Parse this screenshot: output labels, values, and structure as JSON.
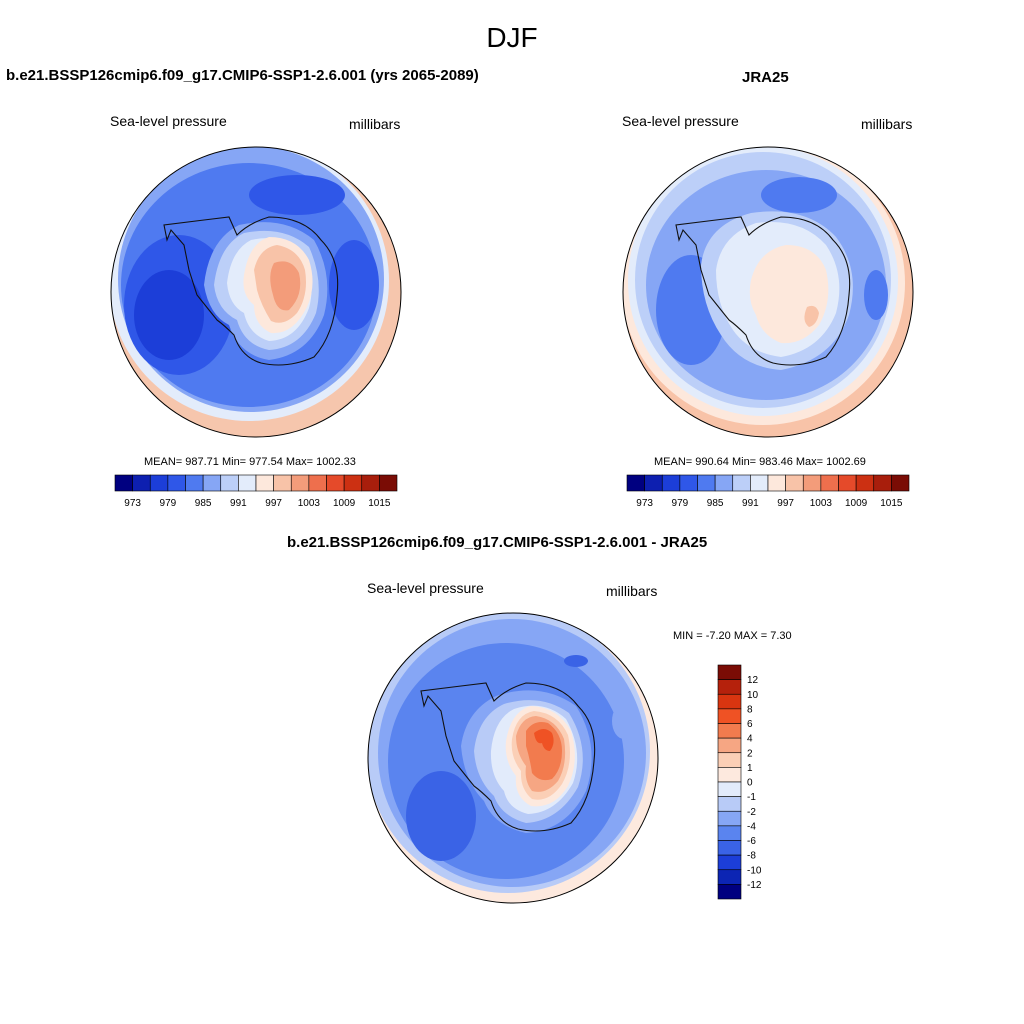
{
  "page_title": "DJF",
  "panels": [
    {
      "title": "b.e21.BSSP126cmip6.f09_g17.CMIP6-SSP1-2.6.001 (yrs 2065-2089)",
      "left_label": "Sea-level pressure",
      "right_label": "millibars",
      "mean": "987.71",
      "min": "977.54",
      "max": "1002.33",
      "stats_text": "MEAN= 987.71  Min= 977.54  Max= 1002.33"
    },
    {
      "title": "JRA25",
      "left_label": "Sea-level pressure",
      "right_label": "millibars",
      "mean": "990.64",
      "min": "983.46",
      "max": "1002.69",
      "stats_text": "MEAN= 990.64  Min= 983.46  Max= 1002.69"
    },
    {
      "title": "b.e21.BSSP126cmip6.f09_g17.CMIP6-SSP1-2.6.001 - JRA25",
      "left_label": "Sea-level pressure",
      "right_label": "millibars",
      "min": "-7.20",
      "max": "7.30",
      "stats_text": "MIN =  -7.20 MAX =   7.30"
    }
  ],
  "colorbar_abs": {
    "labels": [
      "973",
      "979",
      "985",
      "991",
      "997",
      "1003",
      "1009",
      "1015"
    ],
    "colors": [
      "#000080",
      "#0d1fb0",
      "#1c3ed8",
      "#2f57e8",
      "#4f7af0",
      "#86a6f5",
      "#bccff8",
      "#e3ecfb",
      "#fde8dc",
      "#f8c3a8",
      "#f39c7a",
      "#ee6f4d",
      "#e54a2a",
      "#cc3012",
      "#a81e0c",
      "#7a0c05"
    ]
  },
  "colorbar_diff": {
    "labels": [
      "12",
      "10",
      "8",
      "6",
      "4",
      "2",
      "1",
      "0",
      "-1",
      "-2",
      "-4",
      "-6",
      "-8",
      "-10",
      "-12"
    ],
    "colors": [
      "#7a0c05",
      "#b5210c",
      "#d93510",
      "#ef5224",
      "#f27b4e",
      "#f6a683",
      "#fbcfb6",
      "#fde9de",
      "#e2ebfb",
      "#b8cbf7",
      "#86a6f5",
      "#5a84ef",
      "#3a63e6",
      "#1c3ed8",
      "#0c25b4",
      "#000080"
    ]
  },
  "chart_data": [
    {
      "type": "heatmap",
      "title": "b.e21.BSSP126cmip6.f09_g17.CMIP6-SSP1-2.6.001 (yrs 2065-2089)",
      "variable": "Sea-level pressure",
      "units": "millibars",
      "stats": {
        "mean": 987.71,
        "min": 977.54,
        "max": 1002.33
      },
      "contour_levels": [
        970,
        973,
        976,
        979,
        982,
        985,
        988,
        991,
        994,
        997,
        1000,
        1003,
        1006,
        1009,
        1012,
        1015
      ]
    },
    {
      "type": "heatmap",
      "title": "JRA25",
      "variable": "Sea-level pressure",
      "units": "millibars",
      "stats": {
        "mean": 990.64,
        "min": 983.46,
        "max": 1002.69
      },
      "contour_levels": [
        970,
        973,
        976,
        979,
        982,
        985,
        988,
        991,
        994,
        997,
        1000,
        1003,
        1006,
        1009,
        1012,
        1015
      ]
    },
    {
      "type": "heatmap",
      "title": "b.e21.BSSP126cmip6.f09_g17.CMIP6-SSP1-2.6.001 - JRA25",
      "variable": "Sea-level pressure",
      "units": "millibars",
      "stats": {
        "min": -7.2,
        "max": 7.3
      },
      "contour_levels": [
        -12,
        -10,
        -8,
        -6,
        -4,
        -2,
        -1,
        0,
        1,
        2,
        4,
        6,
        8,
        10,
        12
      ]
    }
  ]
}
